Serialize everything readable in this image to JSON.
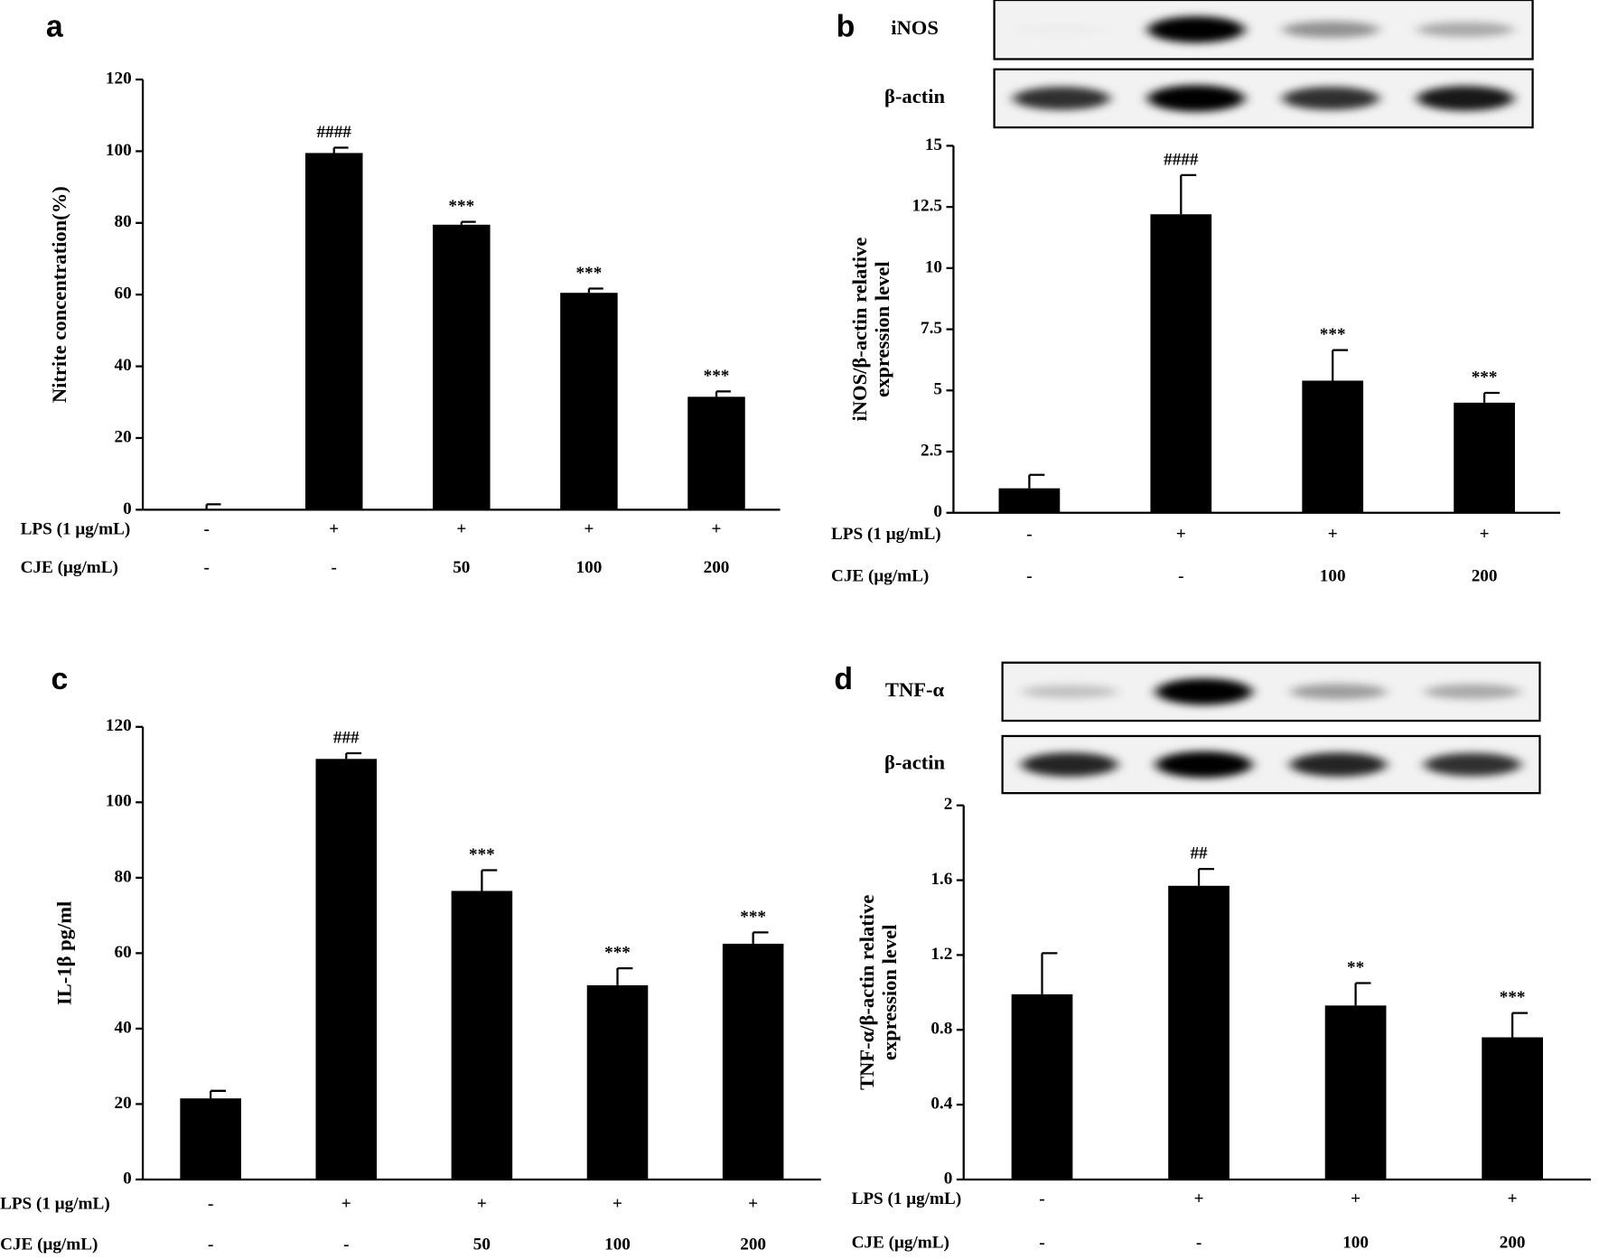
{
  "chart_data": [
    {
      "type": "bar",
      "panel": "a",
      "ylabel": [
        "Nitrite concentration(%)"
      ],
      "categories": [
        null,
        null,
        null,
        null,
        null
      ],
      "values": [
        0,
        99.5,
        79.5,
        60.5,
        31.5
      ],
      "errors": [
        1.5,
        1.5,
        0.8,
        1.2,
        1.5
      ],
      "annotations": [
        null,
        "####",
        "***",
        "***",
        "***"
      ],
      "rows": [
        {
          "label": "LPS (1 μg/mL)",
          "values": [
            "-",
            "+",
            "+",
            "+",
            "+"
          ]
        },
        {
          "label": "CJE (μg/mL)",
          "values": [
            "-",
            "-",
            "50",
            "100",
            "200"
          ]
        }
      ],
      "color": "#000000",
      "ylim": [
        0,
        120
      ],
      "yticks": [
        0,
        20,
        40,
        60,
        80,
        100,
        120
      ]
    },
    {
      "type": "bar",
      "panel": "b",
      "ylabel": [
        "iNOS/β-actin relative",
        "expression level"
      ],
      "blot_labels": [
        "iNOS",
        "β-actin"
      ],
      "categories": [
        null,
        null,
        null,
        null
      ],
      "values": [
        1,
        12.2,
        5.4,
        4.5
      ],
      "errors": [
        0.55,
        1.6,
        1.25,
        0.4
      ],
      "annotations": [
        null,
        "####",
        "***",
        "***"
      ],
      "rows": [
        {
          "label": "LPS (1 μg/mL)",
          "values": [
            "-",
            "+",
            "+",
            "+"
          ]
        },
        {
          "label": "CJE (μg/mL)",
          "values": [
            "-",
            "-",
            "100",
            "200"
          ]
        }
      ],
      "color": "#000000",
      "ylim": [
        0,
        15
      ],
      "yticks": [
        0,
        2.5,
        5,
        7.5,
        10,
        12.5,
        15
      ]
    },
    {
      "type": "bar",
      "panel": "c",
      "ylabel": [
        "IL-1β pg/ml"
      ],
      "categories": [
        null,
        null,
        null,
        null,
        null
      ],
      "values": [
        21.5,
        111.5,
        76.5,
        51.5,
        62.5
      ],
      "errors": [
        2,
        1.5,
        5.5,
        4.5,
        3
      ],
      "annotations": [
        null,
        "###",
        "***",
        "***",
        "***"
      ],
      "rows": [
        {
          "label": "LPS (1 μg/mL)",
          "values": [
            "-",
            "+",
            "+",
            "+",
            "+"
          ]
        },
        {
          "label": "CJE (μg/mL)",
          "values": [
            "-",
            "-",
            "50",
            "100",
            "200"
          ]
        }
      ],
      "color": "#000000",
      "ylim": [
        0,
        120
      ],
      "yticks": [
        0,
        20,
        40,
        60,
        80,
        100,
        120
      ]
    },
    {
      "type": "bar",
      "panel": "d",
      "ylabel": [
        "TNF-α/β-actin relative",
        "expression level"
      ],
      "blot_labels": [
        "TNF-α",
        "β-actin"
      ],
      "categories": [
        null,
        null,
        null,
        null
      ],
      "values": [
        0.99,
        1.57,
        0.93,
        0.76
      ],
      "errors": [
        0.22,
        0.09,
        0.12,
        0.13
      ],
      "annotations": [
        null,
        "##",
        "**",
        "***"
      ],
      "rows": [
        {
          "label": "LPS (1 μg/mL)",
          "values": [
            "-",
            "+",
            "+",
            "+"
          ]
        },
        {
          "label": "CJE (μg/mL)",
          "values": [
            "-",
            "-",
            "100",
            "200"
          ]
        }
      ],
      "color": "#000000",
      "ylim": [
        0,
        2
      ],
      "yticks": [
        0,
        0.4,
        0.8,
        1.2,
        1.6,
        2
      ]
    }
  ]
}
